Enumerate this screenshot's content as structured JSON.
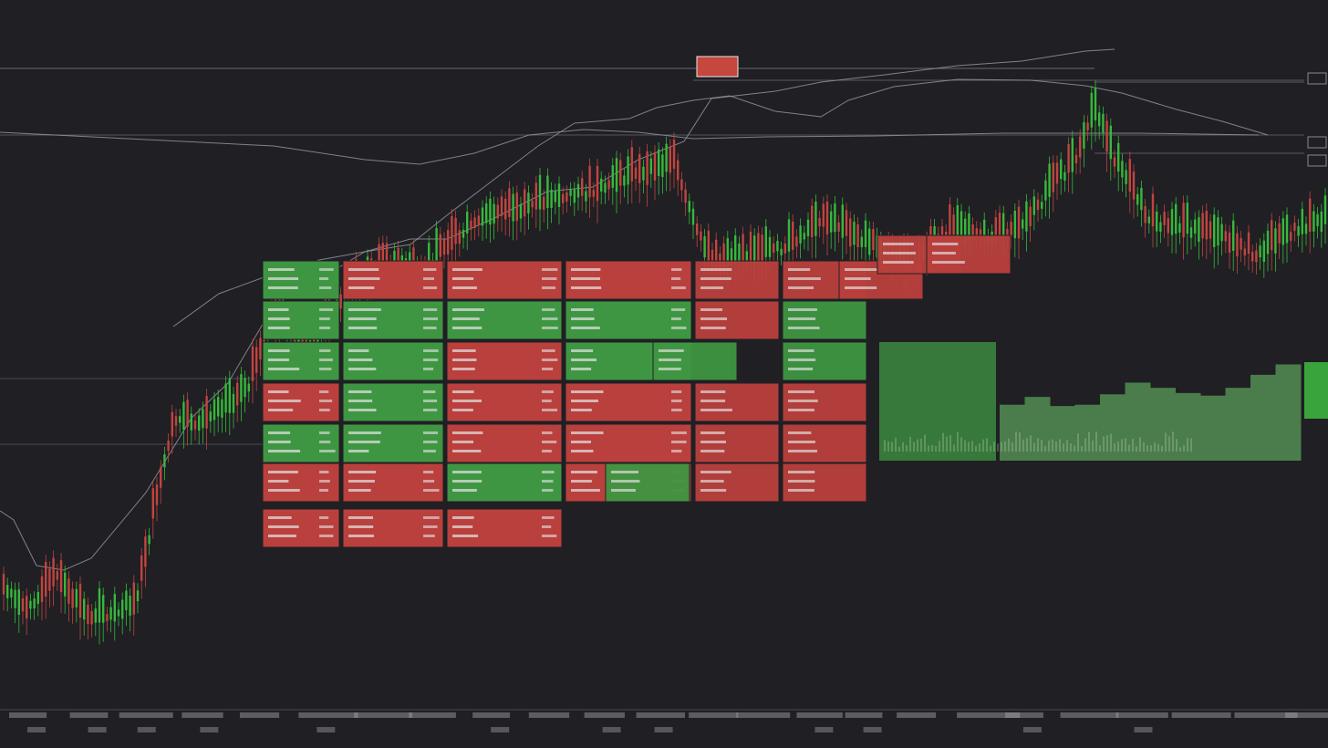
{
  "colors": {
    "background": "#1f1f24",
    "up": "#36b93a",
    "down": "#c2443f",
    "heat_green": "#3f9642",
    "heat_red": "#b9403d",
    "line": "#9a9aa2",
    "grid": "#3a3a42",
    "text": "#d8d8d8"
  },
  "chart_data": [
    {
      "type": "line",
      "series": [
        {
          "points": [
            [
              0,
              560
            ],
            [
              15,
              570
            ],
            [
              40,
              620
            ],
            [
              70,
              625
            ],
            [
              100,
              612
            ],
            [
              160,
              540
            ],
            [
              210,
              458
            ],
            [
              250,
              420
            ],
            [
              300,
              335
            ],
            [
              360,
              300
            ],
            [
              400,
              276
            ],
            [
              450,
              262
            ],
            [
              490,
              262
            ],
            [
              540,
              240
            ],
            [
              600,
              210
            ],
            [
              650,
              205
            ],
            [
              700,
              175
            ],
            [
              750,
              155
            ],
            [
              780,
              108
            ],
            [
              850,
              100
            ],
            [
              900,
              90
            ],
            [
              970,
              82
            ],
            [
              1050,
              72
            ],
            [
              1120,
              67
            ],
            [
              1190,
              56
            ],
            [
              1222,
              54
            ]
          ]
        },
        {
          "points": [
            [
              190,
              358
            ],
            [
              240,
              322
            ],
            [
              300,
              300
            ],
            [
              350,
              285
            ],
            [
              400,
              276
            ],
            [
              450,
              268
            ],
            [
              490,
              236
            ],
            [
              540,
              198
            ],
            [
              590,
              160
            ],
            [
              630,
              135
            ],
            [
              690,
              130
            ],
            [
              720,
              118
            ],
            [
              760,
              110
            ],
            [
              800,
              105
            ],
            [
              850,
              122
            ],
            [
              900,
              128
            ],
            [
              930,
              110
            ],
            [
              980,
              95
            ],
            [
              1050,
              87
            ],
            [
              1130,
              88
            ],
            [
              1190,
              94
            ],
            [
              1230,
              102
            ],
            [
              1290,
              120
            ],
            [
              1340,
              133
            ],
            [
              1390,
              148
            ]
          ]
        },
        {
          "points": [
            [
              0,
              145
            ],
            [
              100,
              150
            ],
            [
              200,
              155
            ],
            [
              300,
              160
            ],
            [
              400,
              175
            ],
            [
              460,
              180
            ],
            [
              520,
              168
            ],
            [
              580,
              148
            ],
            [
              640,
              142
            ],
            [
              700,
              145
            ],
            [
              760,
              152
            ],
            [
              840,
              150
            ],
            [
              960,
              149
            ],
            [
              1100,
              146
            ],
            [
              1250,
              146
            ],
            [
              1380,
              148
            ]
          ]
        }
      ]
    },
    {
      "type": "bar",
      "values": [
        0.43,
        0.49,
        0.42,
        0.43,
        0.51,
        0.6,
        0.56,
        0.52,
        0.5,
        0.56,
        0.66,
        0.74
      ]
    },
    {
      "type": "heatmap",
      "legend": "",
      "cells": [
        {
          "col": 0,
          "row": 0,
          "v": "up"
        },
        {
          "col": 1,
          "row": 0,
          "v": "down"
        },
        {
          "col": 2,
          "row": 0,
          "v": "down"
        },
        {
          "col": 3,
          "row": 0,
          "v": "down"
        },
        {
          "col": 0,
          "row": 1,
          "v": "up"
        },
        {
          "col": 1,
          "row": 1,
          "v": "up"
        },
        {
          "col": 2,
          "row": 1,
          "v": "up"
        },
        {
          "col": 3,
          "row": 1,
          "v": "up"
        },
        {
          "col": 0,
          "row": 2,
          "v": "up"
        },
        {
          "col": 1,
          "row": 2,
          "v": "up"
        },
        {
          "col": 2,
          "row": 2,
          "v": "down"
        },
        {
          "col": 3,
          "row": 2,
          "v": "up"
        },
        {
          "col": 0,
          "row": 3,
          "v": "down"
        },
        {
          "col": 1,
          "row": 3,
          "v": "up"
        },
        {
          "col": 2,
          "row": 3,
          "v": "down"
        },
        {
          "col": 3,
          "row": 3,
          "v": "down"
        },
        {
          "col": 0,
          "row": 4,
          "v": "up"
        },
        {
          "col": 1,
          "row": 4,
          "v": "up"
        },
        {
          "col": 2,
          "row": 4,
          "v": "down"
        },
        {
          "col": 3,
          "row": 4,
          "v": "down"
        },
        {
          "col": 0,
          "row": 5,
          "v": "down"
        },
        {
          "col": 1,
          "row": 5,
          "v": "down"
        },
        {
          "col": 2,
          "row": 5,
          "v": "up"
        },
        {
          "col": 3,
          "row": 5,
          "v": "down"
        },
        {
          "col": 0,
          "row": 6,
          "v": "down"
        },
        {
          "col": 1,
          "row": 6,
          "v": "down"
        },
        {
          "col": 2,
          "row": 6,
          "v": "down"
        }
      ]
    }
  ]
}
